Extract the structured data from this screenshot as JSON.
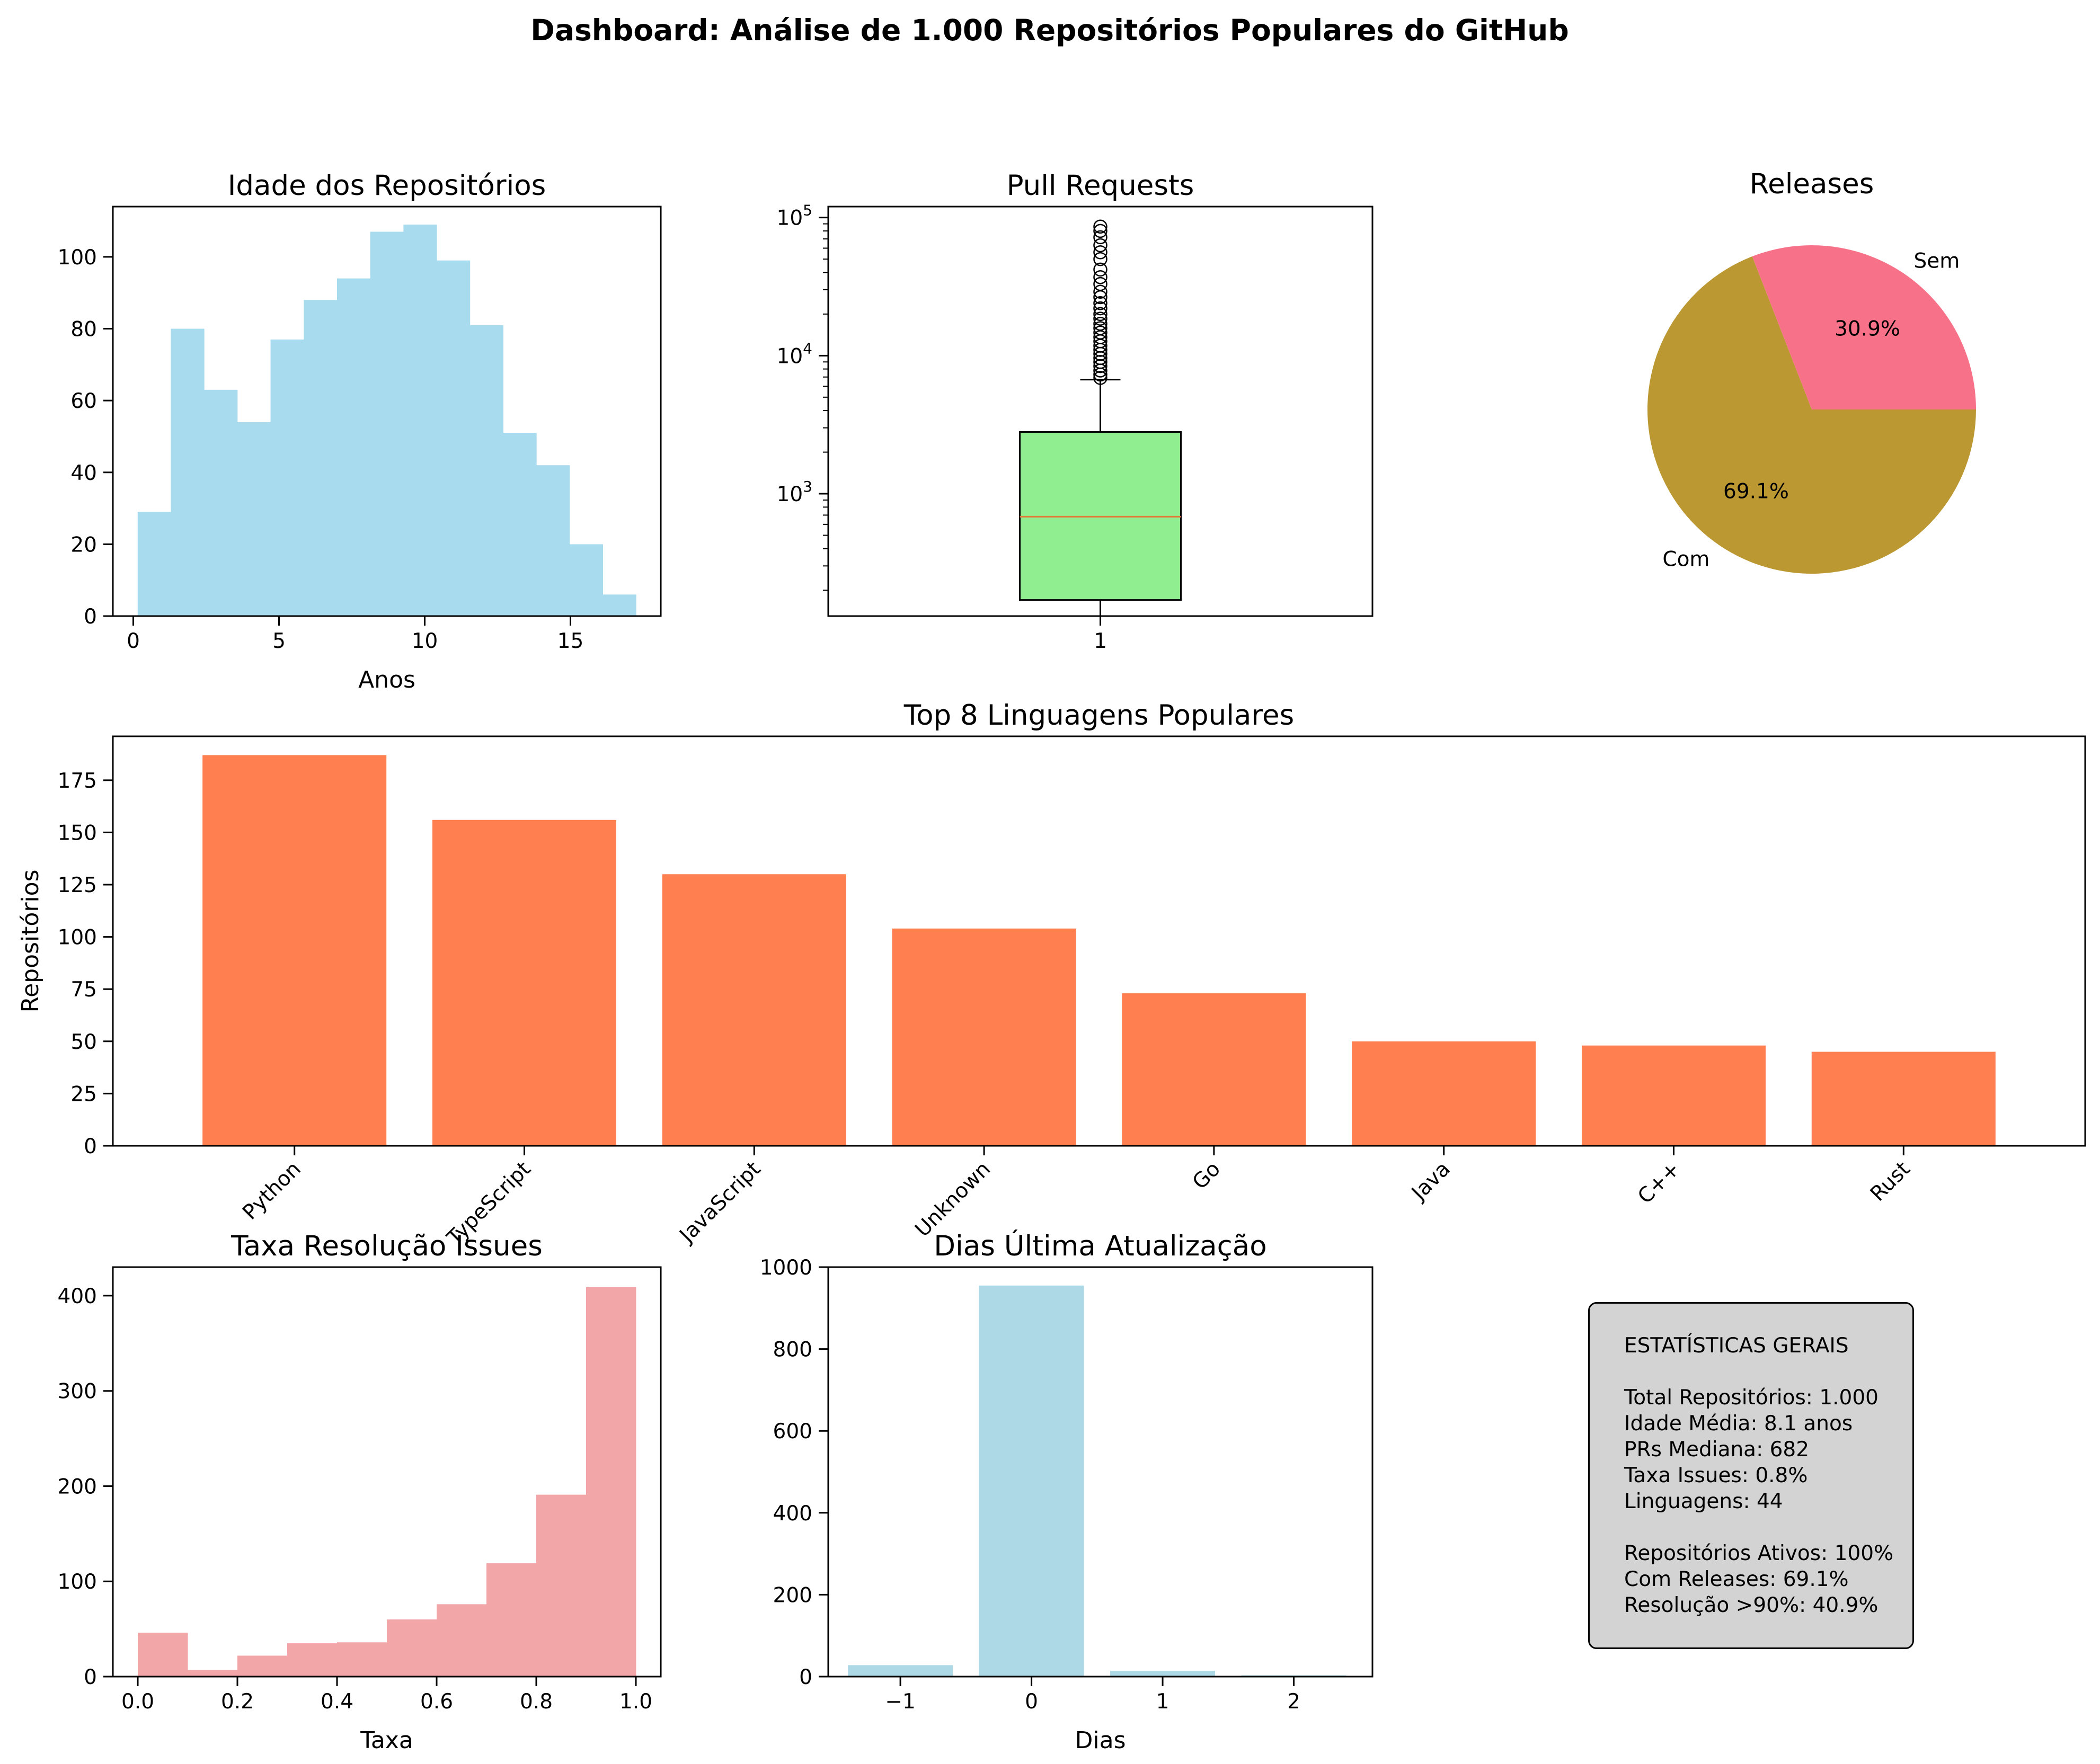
{
  "title": "Dashboard: Análise de 1.000 Repositórios Populares do GitHub",
  "colors": {
    "age_hist": "#a8dbee",
    "box_fill": "#90ee90",
    "median": "#e07b39",
    "pie_sem": "#f77189",
    "pie_com": "#bb9832",
    "languages": "#ff7f50",
    "issues_hist": "#f2a6a8",
    "update_hist": "#add8e6",
    "stats_bg": "#d3d3d3"
  },
  "chart_data": [
    {
      "id": "age",
      "type": "bar",
      "title": "Idade dos Repositórios",
      "xlabel": "Anos",
      "ylabel": "",
      "bin_edges": [
        0.15,
        1.29,
        2.43,
        3.57,
        4.71,
        5.85,
        6.99,
        8.13,
        9.27,
        10.41,
        11.55,
        12.69,
        13.83,
        14.97,
        16.11,
        17.25
      ],
      "values": [
        29,
        80,
        63,
        54,
        77,
        88,
        94,
        107,
        109,
        99,
        81,
        51,
        42,
        20,
        6
      ],
      "xlim": [
        -0.7,
        18.1
      ],
      "ylim": [
        0,
        114
      ],
      "xticks": [
        0,
        5,
        10,
        15
      ],
      "yticks": [
        0,
        20,
        40,
        60,
        80,
        100
      ]
    },
    {
      "id": "prs",
      "type": "box",
      "title": "Pull Requests",
      "xlabel": "",
      "ylabel": "",
      "scale": "log",
      "ylim": [
        130,
        120000
      ],
      "q1": 170,
      "median": 682,
      "q3": 2800,
      "whisker_low": 130,
      "whisker_high": 6700,
      "outliers": [
        6900,
        7300,
        7800,
        8400,
        9000,
        9600,
        10300,
        11000,
        11800,
        12700,
        13600,
        14700,
        15800,
        17000,
        18500,
        20000,
        22000,
        24000,
        26500,
        29000,
        33000,
        37000,
        42000,
        50000,
        56000,
        63000,
        72000,
        80000,
        86000
      ],
      "xticks": [
        "1"
      ],
      "yticks": [
        1000,
        10000,
        100000
      ],
      "ytick_labels": [
        [
          "10",
          "3"
        ],
        [
          "10",
          "4"
        ],
        [
          "10",
          "5"
        ]
      ]
    },
    {
      "id": "releases",
      "type": "pie",
      "title": "Releases",
      "labels": [
        "Sem",
        "Com"
      ],
      "values": [
        30.9,
        69.1
      ],
      "pct_labels": [
        "30.9%",
        "69.1%"
      ]
    },
    {
      "id": "languages",
      "type": "bar",
      "title": "Top 8 Linguagens Populares",
      "xlabel": "",
      "ylabel": "Repositórios",
      "categories": [
        "Python",
        "TypeScript",
        "JavaScript",
        "Unknown",
        "Go",
        "Java",
        "C++",
        "Rust"
      ],
      "values": [
        187,
        156,
        130,
        104,
        73,
        50,
        48,
        45
      ],
      "ylim": [
        0,
        196
      ],
      "yticks": [
        0,
        25,
        50,
        75,
        100,
        125,
        150,
        175
      ]
    },
    {
      "id": "issues",
      "type": "bar",
      "title": "Taxa Resolução Issues",
      "xlabel": "Taxa",
      "ylabel": "",
      "bin_edges": [
        0.0,
        0.1,
        0.2,
        0.3,
        0.4,
        0.5,
        0.6,
        0.7,
        0.8,
        0.9,
        1.0
      ],
      "values": [
        46,
        7,
        22,
        35,
        36,
        60,
        76,
        119,
        191,
        409
      ],
      "xlim": [
        -0.05,
        1.05
      ],
      "ylim": [
        0,
        430
      ],
      "xticks": [
        0.0,
        0.2,
        0.4,
        0.6,
        0.8,
        1.0
      ],
      "xtick_labels": [
        "0.0",
        "0.2",
        "0.4",
        "0.6",
        "0.8",
        "1.0"
      ],
      "yticks": [
        0,
        100,
        200,
        300,
        400
      ]
    },
    {
      "id": "updates",
      "type": "bar",
      "title": "Dias Última Atualização",
      "xlabel": "Dias",
      "ylabel": "",
      "x": [
        -1,
        0,
        1,
        2
      ],
      "values": [
        28,
        955,
        14,
        3
      ],
      "bar_width": 0.8,
      "xlim": [
        -1.55,
        2.6
      ],
      "ylim": [
        0,
        1000
      ],
      "xticks": [
        -1,
        0,
        1,
        2
      ],
      "xtick_labels": [
        "−1",
        "0",
        "1",
        "2"
      ],
      "yticks": [
        0,
        200,
        400,
        600,
        800,
        1000
      ]
    }
  ],
  "stats": {
    "heading": "ESTATÍSTICAS GERAIS",
    "total": "Total Repositórios: 1.000",
    "age": "Idade Média: 8.1 anos",
    "prs": "PRs Mediana: 682",
    "issues_rate": "Taxa Issues: 0.8%",
    "languages": "Linguagens: 44",
    "active": "Repositórios Ativos: 100%",
    "releases": "Com Releases: 69.1%",
    "resolution": "Resolução >90%: 40.9%"
  }
}
